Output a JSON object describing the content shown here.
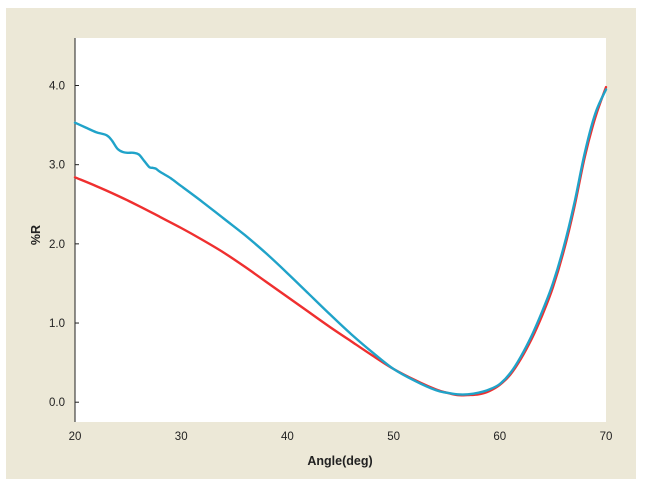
{
  "chart_data": {
    "type": "line",
    "title": "",
    "xlabel": "Angle(deg)",
    "ylabel": "%R",
    "xlim": [
      20,
      70
    ],
    "ylim": [
      -0.25,
      4.6
    ],
    "x_ticks": [
      "20",
      "30",
      "40",
      "50",
      "60",
      "70"
    ],
    "y_ticks": [
      "0.0",
      "1.0",
      "2.0",
      "3.0",
      "4.0"
    ],
    "grid": false,
    "legend": "none",
    "series": [
      {
        "color": "#ef2f2f",
        "x": [
          20,
          22,
          24,
          26,
          28,
          30,
          32,
          34,
          36,
          38,
          40,
          42,
          44,
          46,
          48,
          50,
          52,
          54,
          55,
          56,
          57,
          58,
          59,
          60,
          61,
          62,
          63,
          64,
          65,
          66,
          67,
          68,
          69,
          70
        ],
        "y": [
          2.84,
          2.73,
          2.61,
          2.48,
          2.34,
          2.2,
          2.05,
          1.89,
          1.71,
          1.52,
          1.33,
          1.14,
          0.95,
          0.77,
          0.59,
          0.42,
          0.28,
          0.16,
          0.12,
          0.09,
          0.09,
          0.1,
          0.14,
          0.22,
          0.35,
          0.55,
          0.8,
          1.1,
          1.45,
          1.9,
          2.45,
          3.1,
          3.6,
          3.98
        ]
      },
      {
        "color": "#20a3c9",
        "x": [
          20,
          21,
          22,
          23,
          23.5,
          24,
          24.5,
          25,
          25.5,
          26,
          26.5,
          27,
          27.3,
          27.6,
          28,
          29,
          30,
          32,
          34,
          36,
          38,
          40,
          42,
          44,
          46,
          48,
          50,
          52,
          54,
          55,
          56,
          57,
          58,
          59,
          60,
          61,
          62,
          63,
          64,
          65,
          66,
          67,
          68,
          69,
          70
        ],
        "y": [
          3.53,
          3.47,
          3.41,
          3.37,
          3.3,
          3.2,
          3.16,
          3.15,
          3.15,
          3.13,
          3.05,
          2.97,
          2.96,
          2.95,
          2.91,
          2.83,
          2.73,
          2.53,
          2.32,
          2.11,
          1.88,
          1.63,
          1.37,
          1.11,
          0.86,
          0.63,
          0.42,
          0.27,
          0.15,
          0.12,
          0.1,
          0.1,
          0.12,
          0.16,
          0.23,
          0.37,
          0.58,
          0.84,
          1.15,
          1.5,
          1.95,
          2.5,
          3.15,
          3.65,
          3.95
        ]
      }
    ]
  }
}
